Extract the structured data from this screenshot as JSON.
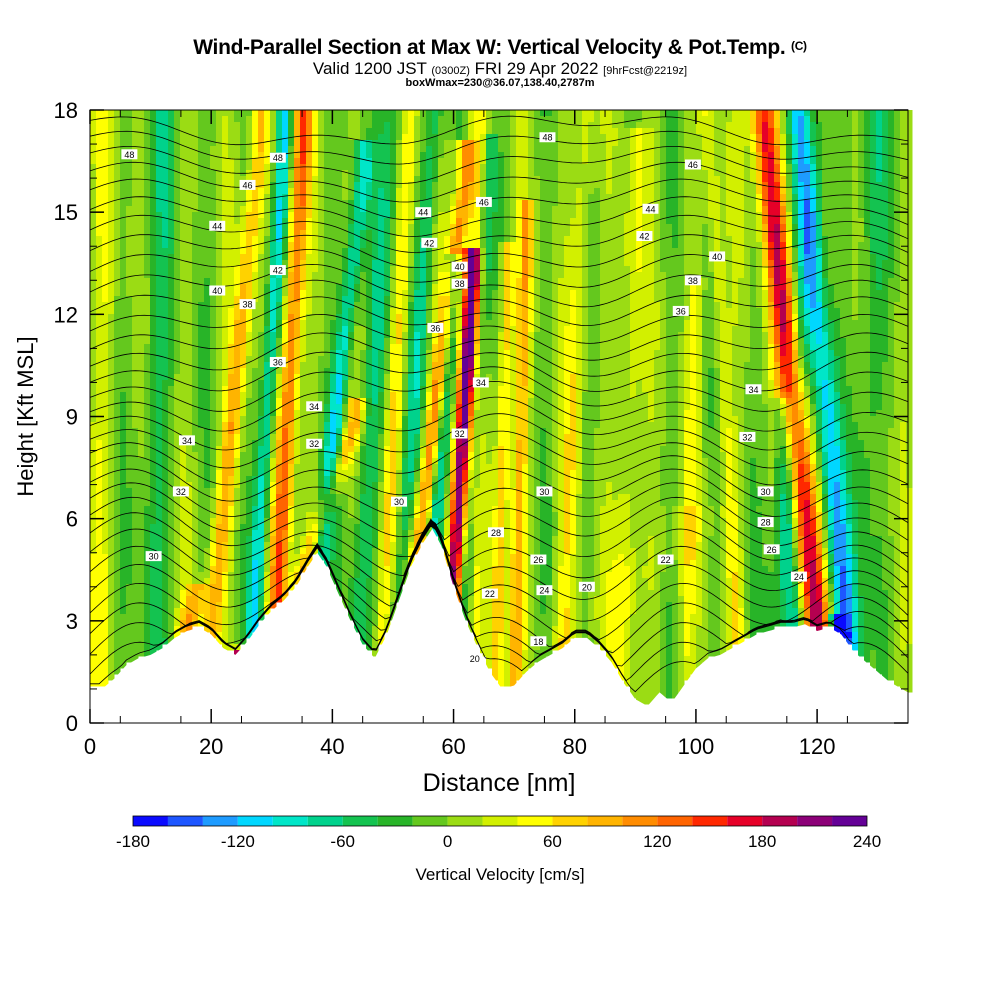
{
  "title": "Wind-Parallel Section at Max W: Vertical Velocity & Pot.Temp.",
  "title_mark": "(C)",
  "subtitle_main": "Valid 1200 JST",
  "subtitle_utc": "(0300Z)",
  "subtitle_date": "FRI 29 Apr 2022",
  "subtitle_fcst": "[9hrFcst@2219z]",
  "box_info": "boxWmax=230@36.07,138.40,2787m",
  "chart_data": {
    "type": "heatmap",
    "xlabel": "Distance [nm]",
    "ylabel": "Height [Kft MSL]",
    "xlim": [
      0,
      135
    ],
    "ylim": [
      0,
      18
    ],
    "x_ticks": [
      "0",
      "20",
      "40",
      "60",
      "80",
      "100",
      "120"
    ],
    "x_tick_values": [
      0,
      20,
      40,
      60,
      80,
      100,
      120
    ],
    "y_ticks": [
      "0",
      "3",
      "6",
      "9",
      "12",
      "15",
      "18"
    ],
    "y_tick_values": [
      0,
      3,
      6,
      9,
      12,
      15,
      18
    ],
    "colorbar": {
      "label": "Vertical Velocity [cm/s]",
      "min": -180,
      "max": 240,
      "step": 20,
      "tick_labels": [
        "-180",
        "-120",
        "-60",
        "0",
        "60",
        "120",
        "180",
        "240"
      ],
      "tick_values": [
        -180,
        -120,
        -60,
        0,
        60,
        120,
        180,
        240
      ],
      "colors": [
        "#0a0aff",
        "#1e56ff",
        "#1e9bff",
        "#00d7ff",
        "#00e6c8",
        "#00d28c",
        "#14c350",
        "#28b428",
        "#64c81e",
        "#9bdc14",
        "#d2f000",
        "#ffff00",
        "#ffd200",
        "#ffb400",
        "#ff8c00",
        "#ff6400",
        "#ff2800",
        "#e60028",
        "#b40050",
        "#8c0078",
        "#640096"
      ]
    },
    "terrain_kft": [
      [
        0,
        1
      ],
      [
        2,
        1
      ],
      [
        4,
        1.3
      ],
      [
        6,
        1.7
      ],
      [
        8,
        1.9
      ],
      [
        10,
        2.0
      ],
      [
        12,
        2.2
      ],
      [
        14,
        2.5
      ],
      [
        16,
        2.7
      ],
      [
        18,
        2.8
      ],
      [
        20,
        2.6
      ],
      [
        22,
        2.2
      ],
      [
        24,
        2.0
      ],
      [
        26,
        2.4
      ],
      [
        28,
        2.9
      ],
      [
        30,
        3.3
      ],
      [
        32,
        3.6
      ],
      [
        34,
        4.0
      ],
      [
        36,
        4.6
      ],
      [
        37.5,
        5.0
      ],
      [
        39,
        4.6
      ],
      [
        41,
        3.8
      ],
      [
        43,
        3.0
      ],
      [
        45,
        2.3
      ],
      [
        47,
        1.9
      ],
      [
        49,
        2.6
      ],
      [
        51,
        3.6
      ],
      [
        53,
        4.6
      ],
      [
        55,
        5.3
      ],
      [
        56.5,
        5.7
      ],
      [
        58,
        5.2
      ],
      [
        60,
        4.0
      ],
      [
        62,
        3.0
      ],
      [
        64,
        2.2
      ],
      [
        66,
        1.5
      ],
      [
        68,
        1.0
      ],
      [
        70,
        1.1
      ],
      [
        72,
        1.5
      ],
      [
        74,
        1.8
      ],
      [
        76,
        2.0
      ],
      [
        78,
        2.2
      ],
      [
        80,
        2.5
      ],
      [
        82,
        2.5
      ],
      [
        84,
        2.2
      ],
      [
        86,
        1.8
      ],
      [
        88,
        1.2
      ],
      [
        90,
        0.7
      ],
      [
        92,
        0.5
      ],
      [
        94,
        0.9
      ],
      [
        96,
        0.6
      ],
      [
        98,
        1.1
      ],
      [
        100,
        1.6
      ],
      [
        102,
        1.9
      ],
      [
        104,
        2.0
      ],
      [
        106,
        2.2
      ],
      [
        108,
        2.4
      ],
      [
        110,
        2.6
      ],
      [
        112,
        2.7
      ],
      [
        114,
        2.8
      ],
      [
        116,
        2.8
      ],
      [
        118,
        2.9
      ],
      [
        120,
        2.7
      ],
      [
        122,
        2.8
      ],
      [
        124,
        2.6
      ],
      [
        126,
        2.1
      ],
      [
        128,
        1.8
      ],
      [
        130,
        1.5
      ],
      [
        132,
        1.2
      ],
      [
        134,
        1.0
      ],
      [
        135,
        0.9
      ]
    ],
    "w_features": [
      {
        "x0": 24,
        "x1": 36,
        "z1": 3,
        "width": 2.0,
        "w": 205
      },
      {
        "x0": 31,
        "x1": 35,
        "z1": 17,
        "width": 1.6,
        "w": 135
      },
      {
        "x0": 27,
        "x1": 32,
        "z1": 17,
        "width": 1.3,
        "w": -100
      },
      {
        "x0": 20,
        "x1": 28,
        "z1": 17,
        "width": 1.6,
        "w": 90
      },
      {
        "x0": 38,
        "x1": 45,
        "z1": 16,
        "width": 1.5,
        "w": -95
      },
      {
        "x0": 35,
        "x1": 44,
        "z1": 9,
        "width": 1.6,
        "w": 80
      },
      {
        "x0": 44,
        "x1": 50,
        "z1": 18,
        "width": 1.8,
        "w": -55
      },
      {
        "x0": 48,
        "x1": 53,
        "z1": 18,
        "width": 1.3,
        "w": 55
      },
      {
        "x0": 51,
        "x1": 57,
        "z1": 18,
        "width": 1.4,
        "w": -60
      },
      {
        "x0": 54,
        "x1": 62,
        "z1": 16,
        "width": 1.5,
        "w": 120
      },
      {
        "x0": 60,
        "x1": 63,
        "z1": 13,
        "width": 1.3,
        "w": 230
      },
      {
        "x0": 57,
        "x1": 60,
        "z1": 13,
        "width": 1.2,
        "w": -105
      },
      {
        "x0": 62,
        "x1": 66,
        "z1": 16,
        "width": 1.2,
        "w": -65
      },
      {
        "x0": 67,
        "x1": 69,
        "z1": 13,
        "width": 1.2,
        "w": 85
      },
      {
        "x0": 70,
        "x1": 72,
        "z1": 14,
        "width": 1.2,
        "w": 80
      },
      {
        "x0": 63,
        "x1": 64,
        "z1": 18,
        "width": 1.5,
        "w": 50
      },
      {
        "x0": 78,
        "x1": 82,
        "z1": 18,
        "width": 1.6,
        "w": 45
      },
      {
        "x0": 88,
        "x1": 90,
        "z1": 16,
        "width": 1.8,
        "w": 45
      },
      {
        "x0": 98,
        "x1": 100,
        "z1": 12,
        "width": 1.4,
        "w": 35
      },
      {
        "x0": 107,
        "x1": 102,
        "z1": 18,
        "width": 1.3,
        "w": 45
      },
      {
        "x0": 113,
        "x1": 121,
        "z1": 18,
        "width": 2.0,
        "w": -40
      },
      {
        "x0": 120,
        "x1": 111,
        "z1": 18,
        "width": 2.2,
        "w": 175
      },
      {
        "x0": 125,
        "x1": 117,
        "z1": 18,
        "width": 2.0,
        "w": -105
      },
      {
        "x0": 124,
        "x1": 123,
        "z1": 3,
        "width": 1.0,
        "w": -160
      },
      {
        "x0": 116,
        "x1": 114,
        "z1": 9,
        "width": 1.6,
        "w": -70
      },
      {
        "x0": 126,
        "x1": 130,
        "z1": 18,
        "width": 2.5,
        "w": -40
      },
      {
        "x0": 16,
        "x1": 18,
        "z1": 4,
        "width": 2.0,
        "w": 80
      },
      {
        "x0": 10,
        "x1": 12,
        "z1": 18,
        "width": 2.5,
        "w": -40
      },
      {
        "x0": 1,
        "x1": 3,
        "z1": 18,
        "width": 2.0,
        "w": 30
      },
      {
        "x0": 80,
        "x1": 100,
        "z1": 6,
        "width": 8,
        "w": 15
      }
    ],
    "theta_contours": {
      "range": [
        17,
        49
      ],
      "labels": [
        {
          "text": "48",
          "x": 6.5,
          "z": 16.7
        },
        {
          "text": "48",
          "x": 31,
          "z": 16.6
        },
        {
          "text": "46",
          "x": 26,
          "z": 15.8
        },
        {
          "text": "44",
          "x": 21,
          "z": 14.6
        },
        {
          "text": "42",
          "x": 31,
          "z": 13.3
        },
        {
          "text": "40",
          "x": 21,
          "z": 12.7
        },
        {
          "text": "38",
          "x": 26,
          "z": 12.3
        },
        {
          "text": "36",
          "x": 31,
          "z": 10.6
        },
        {
          "text": "34",
          "x": 37,
          "z": 9.3
        },
        {
          "text": "34",
          "x": 16,
          "z": 8.3
        },
        {
          "text": "32",
          "x": 37,
          "z": 8.2
        },
        {
          "text": "32",
          "x": 15,
          "z": 6.8
        },
        {
          "text": "30",
          "x": 10.5,
          "z": 4.9
        },
        {
          "text": "30",
          "x": 51,
          "z": 6.5
        },
        {
          "text": "44",
          "x": 55,
          "z": 15.0
        },
        {
          "text": "46",
          "x": 65,
          "z": 15.3
        },
        {
          "text": "42",
          "x": 56,
          "z": 14.1
        },
        {
          "text": "40",
          "x": 61,
          "z": 13.4
        },
        {
          "text": "38",
          "x": 61,
          "z": 12.9
        },
        {
          "text": "36",
          "x": 57,
          "z": 11.6
        },
        {
          "text": "34",
          "x": 64.5,
          "z": 10.0
        },
        {
          "text": "32",
          "x": 61,
          "z": 8.5
        },
        {
          "text": "30",
          "x": 75,
          "z": 6.8
        },
        {
          "text": "28",
          "x": 67,
          "z": 5.6
        },
        {
          "text": "26",
          "x": 74,
          "z": 4.8
        },
        {
          "text": "24",
          "x": 75,
          "z": 3.9
        },
        {
          "text": "22",
          "x": 66,
          "z": 3.8
        },
        {
          "text": "20",
          "x": 82,
          "z": 4.0
        },
        {
          "text": "18",
          "x": 74,
          "z": 2.4
        },
        {
          "text": "20",
          "x": 63.5,
          "z": 1.9
        },
        {
          "text": "48",
          "x": 75.5,
          "z": 17.2
        },
        {
          "text": "46",
          "x": 99.5,
          "z": 16.4
        },
        {
          "text": "44",
          "x": 92.5,
          "z": 15.1
        },
        {
          "text": "42",
          "x": 91.5,
          "z": 14.3
        },
        {
          "text": "40",
          "x": 103.5,
          "z": 13.7
        },
        {
          "text": "38",
          "x": 99.5,
          "z": 13.0
        },
        {
          "text": "36",
          "x": 97.5,
          "z": 12.1
        },
        {
          "text": "34",
          "x": 109.5,
          "z": 9.8
        },
        {
          "text": "32",
          "x": 108.5,
          "z": 8.4
        },
        {
          "text": "30",
          "x": 111.5,
          "z": 6.8
        },
        {
          "text": "28",
          "x": 111.5,
          "z": 5.9
        },
        {
          "text": "26",
          "x": 112.5,
          "z": 5.1
        },
        {
          "text": "24",
          "x": 117,
          "z": 4.3
        },
        {
          "text": "22",
          "x": 95,
          "z": 4.8
        }
      ]
    }
  }
}
